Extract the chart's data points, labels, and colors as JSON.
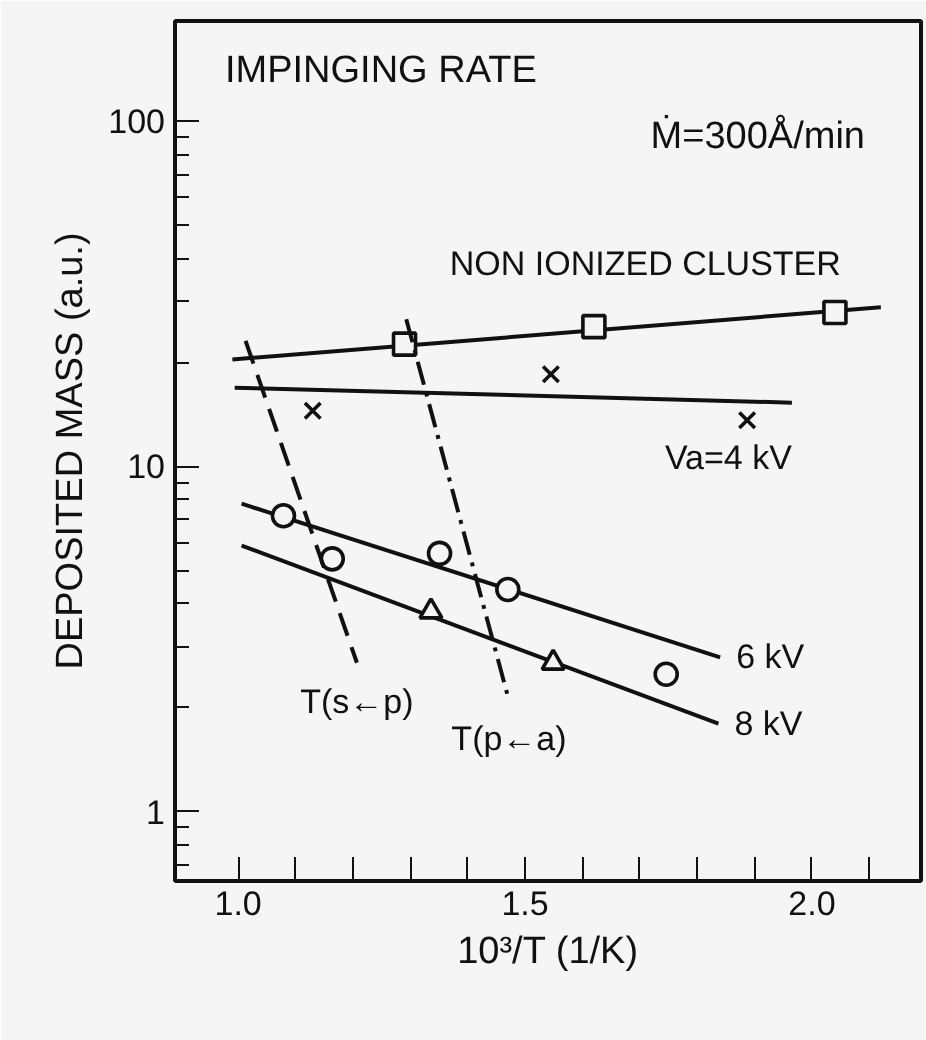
{
  "chart_data": {
    "type": "scatter",
    "title": "IMPINGING RATE",
    "subtitle": "Ṁ=300Å/min",
    "xlabel": "10³/T (1/K)",
    "ylabel": "DEPOSITED MASS (a.u.)",
    "log": "y",
    "grid": false,
    "legend": false,
    "xlim": [
      0.89,
      2.19
    ],
    "ylim": [
      0.63,
      195
    ],
    "xticks": [
      {
        "value": 1.0,
        "label": "1.0"
      },
      {
        "value": 1.1,
        "label": null
      },
      {
        "value": 1.2,
        "label": null
      },
      {
        "value": 1.3,
        "label": null
      },
      {
        "value": 1.4,
        "label": null
      },
      {
        "value": 1.5,
        "label": "1.5"
      },
      {
        "value": 1.6,
        "label": null
      },
      {
        "value": 1.7,
        "label": null
      },
      {
        "value": 1.8,
        "label": null
      },
      {
        "value": 1.9,
        "label": null
      },
      {
        "value": 2.0,
        "label": "2.0"
      },
      {
        "value": 2.1,
        "label": null
      }
    ],
    "yticks": [
      1,
      10,
      100
    ],
    "series": [
      {
        "type": "line",
        "name": "NON IONIZED CLUSTER",
        "color": "#111111",
        "x": [
          0.99,
          2.12
        ],
        "values": [
          20.4,
          28.9
        ],
        "line_style": "solid"
      },
      {
        "color": "#111111",
        "marker": "square",
        "x": [
          1.29,
          1.62,
          2.04
        ],
        "values": [
          22.6,
          25.4,
          27.9
        ]
      },
      {
        "type": "line",
        "name": "Va=4 kV",
        "color": "#111111",
        "x": [
          0.994,
          1.965
        ],
        "values": [
          16.9,
          15.3
        ],
        "line_style": "solid"
      },
      {
        "color": "#111111",
        "marker": "cross",
        "x": [
          1.13,
          1.545,
          1.887
        ],
        "values": [
          14.5,
          18.5,
          13.6
        ]
      },
      {
        "type": "line",
        "name": "6 kV",
        "color": "#111111",
        "x": [
          1.006,
          1.84
        ],
        "values": [
          7.8,
          2.8
        ],
        "line_style": "solid"
      },
      {
        "color": "#111111",
        "marker": "circle",
        "x": [
          1.079,
          1.164,
          1.351,
          1.47,
          1.746
        ],
        "values": [
          7.2,
          5.4,
          5.6,
          4.4,
          2.5
        ]
      },
      {
        "type": "line",
        "name": "8 kV",
        "color": "#111111",
        "x": [
          1.006,
          1.837
        ],
        "values": [
          5.9,
          1.8
        ],
        "line_style": "solid"
      },
      {
        "color": "#111111",
        "marker": "triangle",
        "x": [
          1.336,
          1.549
        ],
        "values": [
          3.8,
          2.7
        ]
      },
      {
        "type": "line",
        "name": "T(s←p)",
        "color": "#111111",
        "x": [
          1.013,
          1.207
        ],
        "values": [
          23.1,
          2.7
        ],
        "line_style": "dashed"
      },
      {
        "type": "line",
        "name": "T(p←a)",
        "color": "#111111",
        "x": [
          1.293,
          1.472
        ],
        "values": [
          26.7,
          2.1
        ],
        "line_style": "dashdot"
      }
    ]
  }
}
